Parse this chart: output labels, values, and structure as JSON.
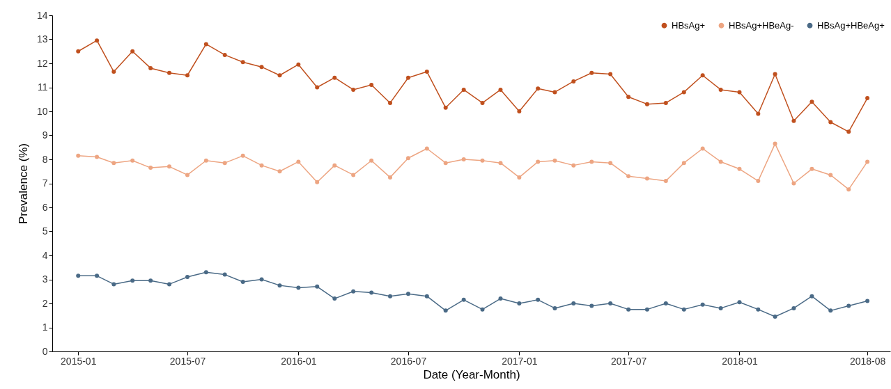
{
  "chart_data": {
    "type": "line",
    "xlabel": "Date (Year-Month)",
    "ylabel": "Prevalence (%)",
    "x": [
      "2015-01",
      "2015-02",
      "2015-03",
      "2015-04",
      "2015-05",
      "2015-06",
      "2015-07",
      "2015-08",
      "2015-09",
      "2015-10",
      "2015-11",
      "2015-12",
      "2016-01",
      "2016-02",
      "2016-03",
      "2016-04",
      "2016-05",
      "2016-06",
      "2016-07",
      "2016-08",
      "2016-09",
      "2016-10",
      "2016-11",
      "2016-12",
      "2017-01",
      "2017-02",
      "2017-03",
      "2017-04",
      "2017-05",
      "2017-06",
      "2017-07",
      "2017-08",
      "2017-09",
      "2017-10",
      "2017-11",
      "2017-12",
      "2018-01",
      "2018-02",
      "2018-03",
      "2018-04",
      "2018-05",
      "2018-06",
      "2018-07",
      "2018-08"
    ],
    "series": [
      {
        "name": "HBsAg+",
        "color": "#c0501e",
        "values": [
          12.5,
          12.95,
          11.65,
          12.5,
          11.8,
          11.6,
          11.5,
          12.8,
          12.35,
          12.05,
          11.85,
          11.5,
          11.95,
          11.0,
          11.4,
          10.9,
          11.1,
          10.35,
          11.4,
          11.65,
          10.15,
          10.9,
          10.35,
          10.9,
          10.0,
          10.95,
          10.8,
          11.25,
          11.6,
          11.55,
          10.6,
          10.3,
          10.35,
          10.8,
          11.5,
          10.9,
          10.8,
          9.9,
          11.55,
          9.6,
          10.4,
          9.55,
          9.15,
          10.55
        ]
      },
      {
        "name": "HBsAg+HBeAg-",
        "color": "#eda582",
        "values": [
          8.15,
          8.1,
          7.85,
          7.95,
          7.65,
          7.7,
          7.35,
          7.95,
          7.85,
          8.15,
          7.75,
          7.5,
          7.9,
          7.05,
          7.75,
          7.35,
          7.95,
          7.25,
          8.05,
          8.45,
          7.85,
          8.0,
          7.95,
          7.85,
          7.25,
          7.9,
          7.95,
          7.75,
          7.9,
          7.85,
          7.3,
          7.2,
          7.1,
          7.85,
          8.45,
          7.9,
          7.6,
          7.1,
          8.65,
          7.0,
          7.6,
          7.35,
          6.75,
          7.9
        ]
      },
      {
        "name": "HBsAg+HBeAg+",
        "color": "#4a6a86",
        "values": [
          3.15,
          3.15,
          2.8,
          2.95,
          2.95,
          2.8,
          3.1,
          3.3,
          3.2,
          2.9,
          3.0,
          2.75,
          2.65,
          2.7,
          2.2,
          2.5,
          2.45,
          2.3,
          2.4,
          2.3,
          1.7,
          2.15,
          1.75,
          2.2,
          2.0,
          2.15,
          1.8,
          2.0,
          1.9,
          2.0,
          1.75,
          1.75,
          2.0,
          1.75,
          1.95,
          1.8,
          2.05,
          1.75,
          1.45,
          1.8,
          2.3,
          1.7,
          1.9,
          2.1
        ]
      }
    ],
    "xlim": [
      "2014-11-19",
      "2018-09-08"
    ],
    "xticks": [
      "2015-01",
      "2015-07",
      "2016-01",
      "2016-07",
      "2017-01",
      "2017-07",
      "2018-01",
      "2018-08"
    ],
    "ylim": [
      0,
      14
    ],
    "yticks": [
      0,
      1,
      2,
      3,
      4,
      5,
      6,
      7,
      8,
      9,
      10,
      11,
      12,
      13,
      14
    ],
    "grid": false,
    "legend": "top right",
    "marker": "circle",
    "line_style": "solid"
  }
}
